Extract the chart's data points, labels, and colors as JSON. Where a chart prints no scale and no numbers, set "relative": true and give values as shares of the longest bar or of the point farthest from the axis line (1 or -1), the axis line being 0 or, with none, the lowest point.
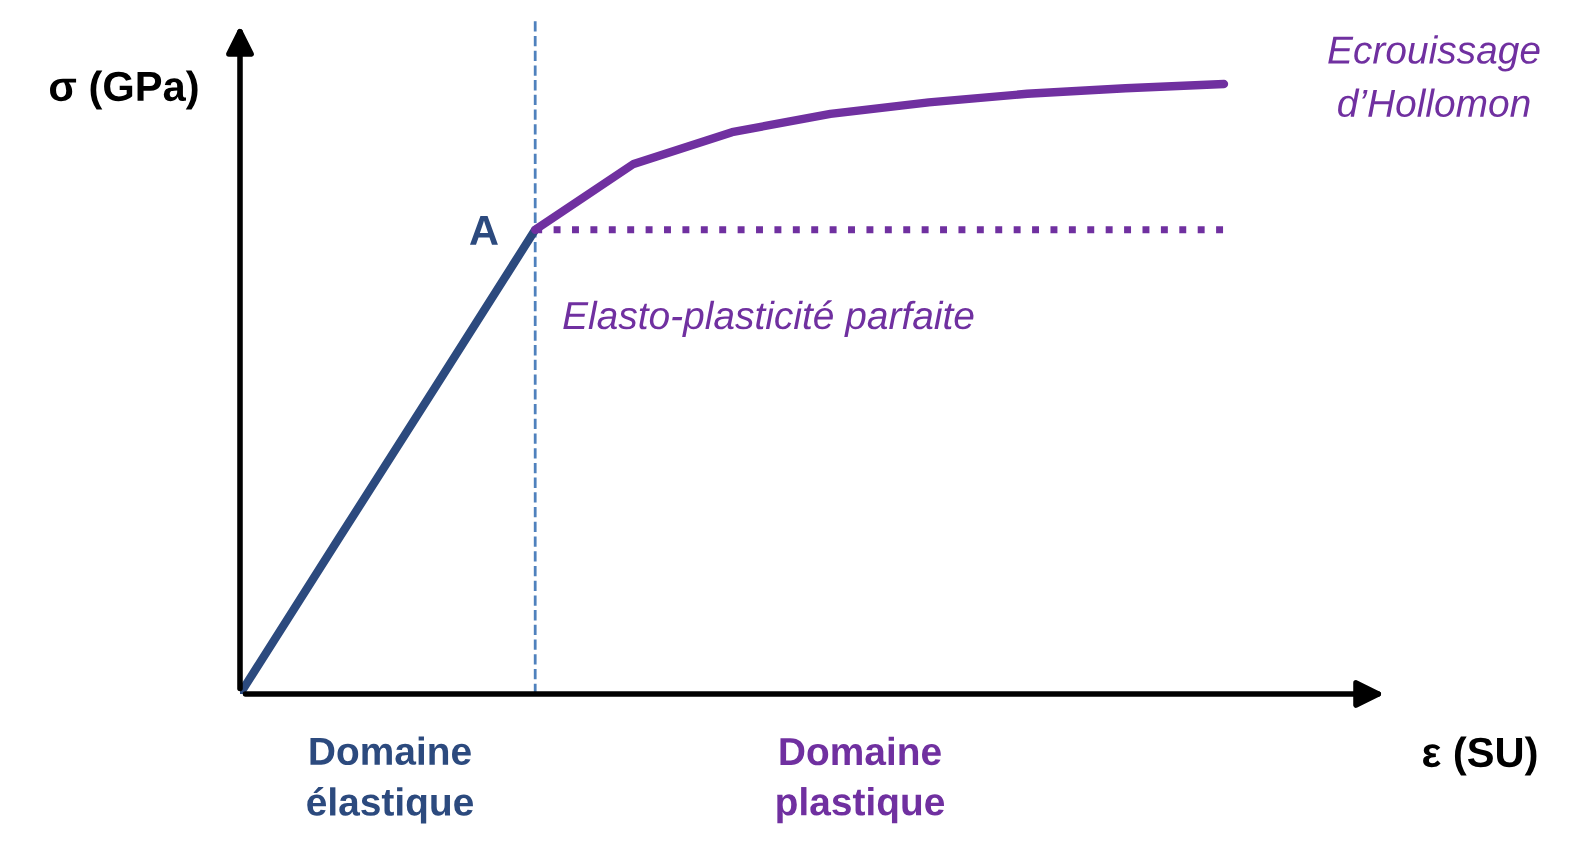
{
  "chart_data": {
    "type": "line",
    "relative": true,
    "xlabel": "ε (SU)",
    "ylabel": "σ (GPa)",
    "categories": [
      null,
      null,
      null,
      null,
      null,
      null,
      null,
      null,
      null,
      null,
      null
    ],
    "series": [
      {
        "color": "#2c4a7e",
        "values": [
          0,
          0.254,
          0.507,
          0.761,
          null,
          null,
          null,
          null,
          null,
          null,
          null
        ]
      },
      {
        "name": "Ecrouissage d’Hollomon",
        "color": "#7030a0",
        "values": [
          null,
          null,
          null,
          0.761,
          0.869,
          0.921,
          0.951,
          0.97,
          0.984,
          0.993,
          1.0
        ]
      },
      {
        "name": "Elasto-plasticité parfaite",
        "color": "#7030a0",
        "line_style": "dotted",
        "values": [
          null,
          null,
          null,
          0.761,
          0.761,
          0.761,
          0.761,
          0.761,
          0.761,
          0.761,
          0.761
        ]
      }
    ],
    "annotations": [
      "A",
      "Domaine élastique",
      "Domaine plastique"
    ]
  }
}
